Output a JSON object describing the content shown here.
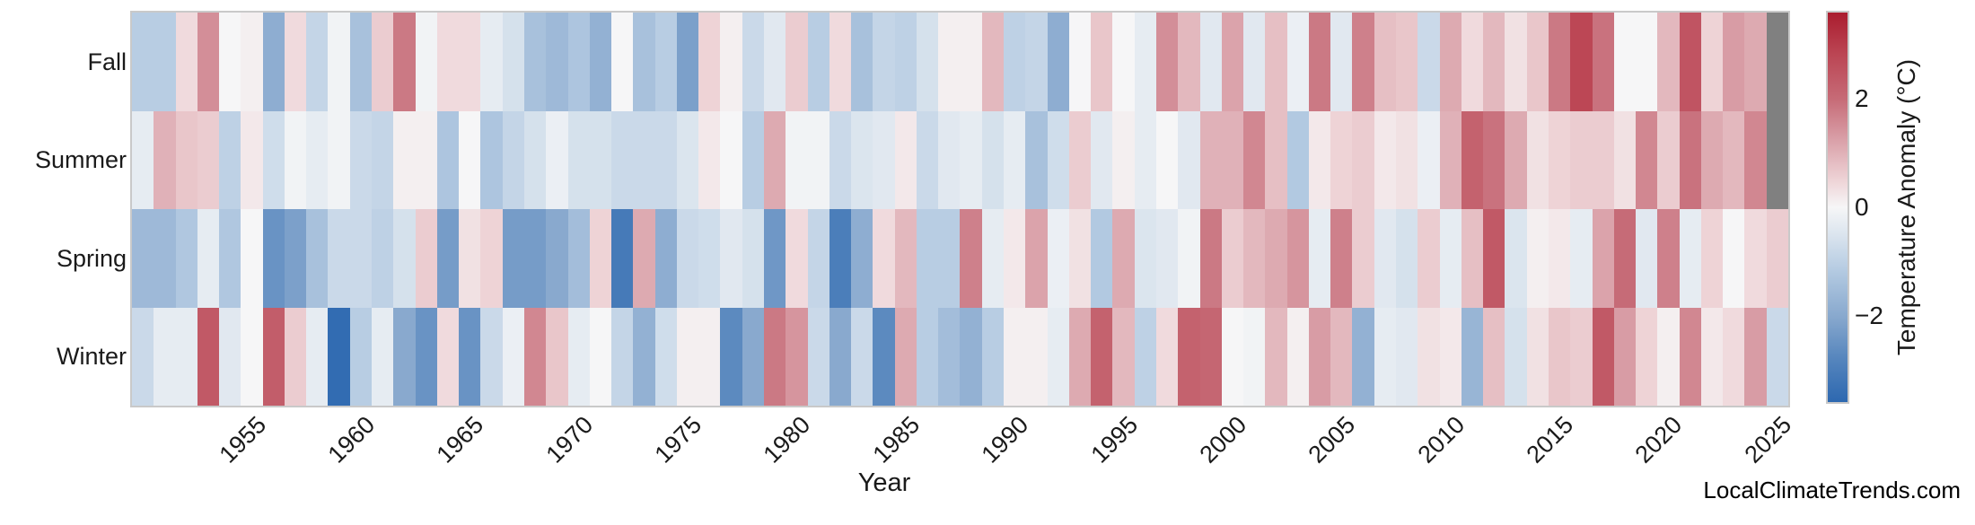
{
  "xlabel": "Year",
  "watermark": "LocalClimateTrends.com",
  "x_ticks": [
    1955,
    1960,
    1965,
    1970,
    1975,
    1980,
    1985,
    1990,
    1995,
    2000,
    2005,
    2010,
    2015,
    2020,
    2025
  ],
  "colorbar": {
    "label": "Temperature Anomaly (°C)",
    "ticks": [
      {
        "value": 2,
        "label": "2"
      },
      {
        "value": 0,
        "label": "0"
      },
      {
        "value": -2,
        "label": "−2"
      }
    ]
  },
  "chart_data": {
    "type": "heatmap",
    "xlabel": "Year",
    "ylabel": "",
    "legend_position": "right",
    "grid": false,
    "x": [
      1950,
      1951,
      1952,
      1953,
      1954,
      1955,
      1956,
      1957,
      1958,
      1959,
      1960,
      1961,
      1962,
      1963,
      1964,
      1965,
      1966,
      1967,
      1968,
      1969,
      1970,
      1971,
      1972,
      1973,
      1974,
      1975,
      1976,
      1977,
      1978,
      1979,
      1980,
      1981,
      1982,
      1983,
      1984,
      1985,
      1986,
      1987,
      1988,
      1989,
      1990,
      1991,
      1992,
      1993,
      1994,
      1995,
      1996,
      1997,
      1998,
      1999,
      2000,
      2001,
      2002,
      2003,
      2004,
      2005,
      2006,
      2007,
      2008,
      2009,
      2010,
      2011,
      2012,
      2013,
      2014,
      2015,
      2016,
      2017,
      2018,
      2019,
      2020,
      2021,
      2022,
      2023,
      2024,
      2025
    ],
    "rows": [
      "Fall",
      "Summer",
      "Spring",
      "Winter"
    ],
    "series": [
      {
        "name": "Fall",
        "values": [
          -1.1,
          -1.1,
          0.4,
          1.5,
          0.0,
          0.1,
          -1.9,
          0.4,
          -0.9,
          -0.1,
          -1.4,
          0.6,
          1.8,
          -0.1,
          0.4,
          0.4,
          -0.3,
          -0.6,
          -1.4,
          -1.6,
          -1.3,
          -1.8,
          0.0,
          -1.4,
          -1.1,
          -2.2,
          0.5,
          0.1,
          -0.8,
          -0.4,
          0.6,
          -1.1,
          0.4,
          -1.4,
          -0.9,
          -1.0,
          -0.6,
          0.1,
          0.1,
          0.9,
          -1.0,
          -0.9,
          -1.9,
          0.0,
          0.7,
          0.0,
          -0.3,
          1.5,
          0.9,
          -0.4,
          1.2,
          -0.4,
          0.8,
          -0.2,
          1.8,
          -0.4,
          1.7,
          0.8,
          0.7,
          -0.8,
          1.1,
          0.4,
          0.9,
          0.3,
          0.7,
          1.8,
          2.8,
          1.9,
          0.0,
          0.0,
          0.9,
          2.5,
          0.5,
          1.3,
          1.1,
          null
        ]
      },
      {
        "name": "Summer",
        "values": [
          -0.3,
          1.0,
          0.7,
          0.6,
          -1.0,
          0.2,
          -0.7,
          -0.1,
          -0.3,
          -0.1,
          -0.8,
          -0.9,
          0.1,
          0.1,
          -1.3,
          0.0,
          -1.3,
          -0.9,
          -0.6,
          -0.2,
          -0.6,
          -0.6,
          -0.8,
          -0.8,
          -0.8,
          -0.5,
          0.2,
          0.0,
          -1.1,
          1.1,
          -0.1,
          -0.1,
          -0.8,
          -0.5,
          -0.4,
          0.2,
          -0.8,
          -0.4,
          -0.3,
          -0.6,
          -0.3,
          -1.4,
          -0.7,
          0.6,
          -0.4,
          0.1,
          -0.3,
          0.0,
          -0.4,
          1.0,
          1.0,
          1.6,
          0.8,
          -1.2,
          0.2,
          0.5,
          0.6,
          0.2,
          0.3,
          -0.2,
          1.0,
          2.2,
          1.9,
          1.1,
          0.3,
          0.5,
          0.6,
          0.6,
          0.3,
          1.6,
          0.6,
          1.9,
          1.1,
          0.9,
          1.6,
          null
        ]
      },
      {
        "name": "Spring",
        "values": [
          -1.6,
          -1.6,
          -1.25,
          -0.3,
          -1.25,
          0.0,
          -2.5,
          -2.2,
          -1.4,
          -0.8,
          -0.8,
          -1.0,
          -0.6,
          0.6,
          -2.3,
          0.3,
          0.5,
          -2.3,
          -2.3,
          -2.0,
          -1.5,
          0.5,
          -3.1,
          1.1,
          -1.9,
          -0.8,
          -0.7,
          -0.4,
          -0.6,
          -2.4,
          0.4,
          -0.9,
          -3.0,
          -1.9,
          0.4,
          0.9,
          -1.1,
          -1.1,
          1.7,
          -0.3,
          0.2,
          1.2,
          -0.2,
          0.3,
          -1.2,
          1.1,
          -0.5,
          -0.4,
          -0.1,
          1.8,
          0.6,
          0.9,
          1.1,
          1.4,
          -0.3,
          1.7,
          0.6,
          -0.4,
          -0.6,
          0.6,
          -0.3,
          0.8,
          2.4,
          -0.5,
          0.1,
          0.2,
          -0.3,
          1.2,
          2.0,
          -0.4,
          1.7,
          -0.3,
          0.5,
          0.0,
          0.4,
          0.6
        ]
      },
      {
        "name": "Winter",
        "values": [
          -0.8,
          -0.3,
          -0.3,
          2.4,
          -0.4,
          0.0,
          2.3,
          0.6,
          -0.3,
          -3.5,
          -1.1,
          -0.3,
          -2.0,
          -2.5,
          0.4,
          -2.5,
          -0.8,
          -0.2,
          1.6,
          0.7,
          -0.3,
          0.0,
          -0.9,
          -1.8,
          -0.7,
          0.1,
          0.1,
          -2.7,
          -2.0,
          1.8,
          1.4,
          -0.8,
          -2.0,
          -0.8,
          -2.7,
          1.1,
          -1.1,
          -1.5,
          -1.8,
          -1.1,
          0.1,
          0.1,
          -0.3,
          1.1,
          2.2,
          0.9,
          -1.0,
          0.4,
          2.2,
          2.1,
          0.0,
          -0.1,
          0.9,
          0.1,
          1.3,
          0.9,
          -1.8,
          -0.3,
          -0.4,
          0.3,
          0.2,
          -1.7,
          0.8,
          -0.6,
          0.3,
          0.7,
          0.6,
          2.4,
          1.3,
          0.5,
          0.1,
          1.6,
          0.2,
          0.4,
          1.3,
          -0.8
        ]
      }
    ],
    "vmin": -3.6,
    "vmax": 3.6,
    "missing_color": "#808080",
    "colormap_stops": [
      [
        -1.0,
        "#2d68b0"
      ],
      [
        -0.78,
        "#5585bd"
      ],
      [
        -0.57,
        "#86a7cd"
      ],
      [
        -0.32,
        "#b5cbe2"
      ],
      [
        -0.13,
        "#dde6ef"
      ],
      [
        0.0,
        "#f6f6f7"
      ],
      [
        0.14,
        "#eed3d6"
      ],
      [
        0.33,
        "#dba4ac"
      ],
      [
        0.56,
        "#c66a76"
      ],
      [
        0.79,
        "#bb4553"
      ],
      [
        1.0,
        "#aa1c2e"
      ]
    ]
  }
}
